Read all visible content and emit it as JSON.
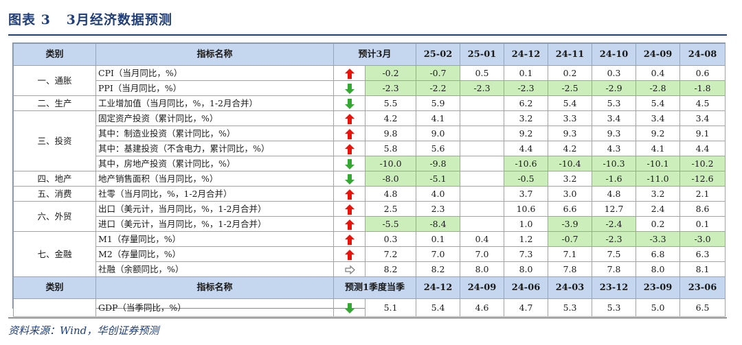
{
  "figure": {
    "title": "图表 3   3月经济数据预测",
    "source": "资料来源：Wind，华创证券预测"
  },
  "colors": {
    "title": "#1f3e7a",
    "header_bg": "#c4d7ef",
    "negative_bg": "#cbeebb",
    "arrow_up": "#e8140b",
    "arrow_down": "#34a832",
    "arrow_flat": "#7a7a7a"
  },
  "header1": [
    "类别",
    "指标名称",
    "预计3月",
    "25-02",
    "25-01",
    "24-12",
    "24-11",
    "24-10",
    "24-09",
    "24-08"
  ],
  "header2": [
    "类别",
    "指标名称",
    "预测1季度当季",
    "24-12",
    "24-09",
    "24-06",
    "24-03",
    "23-12",
    "23-09",
    "23-06"
  ],
  "groups": [
    {
      "category": "一、通胀",
      "rows": [
        {
          "name": "CPI（当月同比，%）",
          "trend": "up",
          "values": [
            "-0.2",
            "-0.7",
            "0.5",
            "0.1",
            "0.2",
            "0.3",
            "0.4",
            "0.6"
          ]
        },
        {
          "name": "PPI（当月同比，%）",
          "trend": "down",
          "values": [
            "-2.3",
            "-2.2",
            "-2.3",
            "-2.3",
            "-2.5",
            "-2.9",
            "-2.8",
            "-1.8"
          ]
        }
      ]
    },
    {
      "category": "二、生产",
      "rows": [
        {
          "name": "工业增加值（当月同比，%，1-2月合并）",
          "trend": "down",
          "values": [
            "5.5",
            "5.9",
            "",
            "6.2",
            "5.4",
            "5.3",
            "5.4",
            "4.5"
          ]
        }
      ]
    },
    {
      "category": "三、投资",
      "rows": [
        {
          "name": "固定资产投资（累计同比，%）",
          "trend": "up",
          "values": [
            "4.2",
            "4.1",
            "",
            "3.2",
            "3.3",
            "3.4",
            "3.4",
            "3.4"
          ]
        },
        {
          "name": "其中：制造业投资（累计同比，%）",
          "trend": "up",
          "values": [
            "9.8",
            "9.0",
            "",
            "9.2",
            "9.3",
            "9.3",
            "9.2",
            "9.1"
          ]
        },
        {
          "name": "其中：基建投资（不含电力，累计同比，%）",
          "trend": "up",
          "values": [
            "5.8",
            "5.6",
            "",
            "4.4",
            "4.2",
            "4.3",
            "4.1",
            "4.4"
          ]
        },
        {
          "name": "其中，房地产投资（累计同比，%）",
          "trend": "down",
          "values": [
            "-10.0",
            "-9.8",
            "",
            "-10.6",
            "-10.4",
            "-10.3",
            "-10.1",
            "-10.2"
          ]
        }
      ]
    },
    {
      "category": "四、地产",
      "rows": [
        {
          "name": "地产销售面积（当月同比，%）",
          "trend": "down",
          "values": [
            "-8.0",
            "-5.1",
            "",
            "-0.5",
            "3.2",
            "-1.6",
            "-11.0",
            "-12.6"
          ]
        }
      ]
    },
    {
      "category": "五、消费",
      "rows": [
        {
          "name": "社零（当月同比，%，1-2月合并）",
          "trend": "up",
          "values": [
            "4.8",
            "4.0",
            "",
            "3.7",
            "3.0",
            "4.8",
            "3.2",
            "2.1"
          ]
        }
      ]
    },
    {
      "category": "六、外贸",
      "rows": [
        {
          "name": "出口（美元计，当月同比，%，1-2月合并）",
          "trend": "up",
          "values": [
            "2.5",
            "2.3",
            "",
            "10.6",
            "6.6",
            "12.7",
            "2.4",
            "8.6"
          ]
        },
        {
          "name": "进口（美元计，当月同比，%，1-2月合并）",
          "trend": "up",
          "values": [
            "-5.5",
            "-8.4",
            "",
            "1.0",
            "-3.9",
            "-2.4",
            "0.2",
            "0.1"
          ]
        }
      ]
    },
    {
      "category": "七、金融",
      "rows": [
        {
          "name": "M1（存量同比，%）",
          "trend": "up",
          "values": [
            "0.3",
            "0.1",
            "0.4",
            "1.2",
            "-0.7",
            "-2.3",
            "-3.3",
            "-3.0"
          ]
        },
        {
          "name": "M2（存量同比，%）",
          "trend": "up",
          "values": [
            "7.2",
            "7.0",
            "7.0",
            "7.3",
            "7.1",
            "7.5",
            "6.8",
            "6.3"
          ]
        },
        {
          "name": "社融（余额同比，%）",
          "trend": "flat",
          "values": [
            "8.2",
            "8.2",
            "8.0",
            "8.0",
            "7.8",
            "7.8",
            "8.0",
            "8.1"
          ]
        }
      ]
    }
  ],
  "gdp": {
    "category": "",
    "name": "GDP（当季同比，%）",
    "trend": "down",
    "values": [
      "5.1",
      "5.4",
      "4.6",
      "4.7",
      "5.3",
      "5.3",
      "5.0",
      "6.5"
    ]
  },
  "trend_icons": {
    "up": "arrow-up-icon",
    "down": "arrow-down-icon",
    "flat": "arrow-right-icon"
  }
}
